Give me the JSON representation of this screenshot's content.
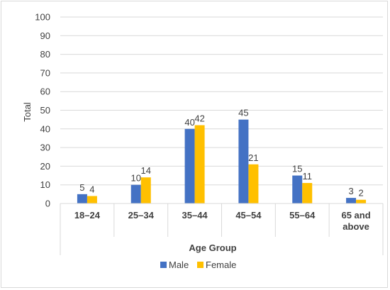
{
  "chart_data": {
    "type": "bar",
    "categories": [
      "18–24",
      "25–34",
      "35–44",
      "45–54",
      "55–64",
      "65 and above"
    ],
    "series": [
      {
        "name": "Male",
        "values": [
          5,
          10,
          40,
          45,
          15,
          3
        ],
        "color": "#4472C4"
      },
      {
        "name": "Female",
        "values": [
          4,
          14,
          42,
          21,
          11,
          2
        ],
        "color": "#FFC000"
      }
    ],
    "xlabel": "Age Group",
    "ylabel": "Total",
    "ylim": [
      0,
      100
    ],
    "yticks": [
      "0",
      "10",
      "20",
      "30",
      "40",
      "50",
      "60",
      "70",
      "80",
      "90",
      "100"
    ],
    "grid": true,
    "legend_position": "bottom"
  }
}
